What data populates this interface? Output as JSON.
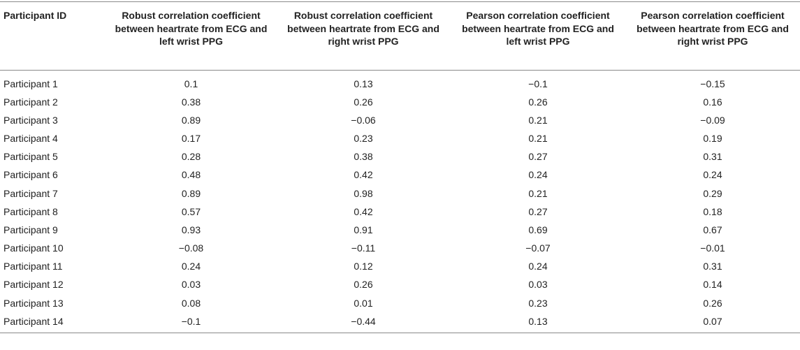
{
  "table": {
    "headers": [
      "Participant ID",
      "Robust correlation coefficient between heartrate from ECG and left wrist PPG",
      "Robust correlation coefficient between heartrate from ECG and right wrist PPG",
      "Pearson correlation coefficient between heartrate from ECG and left wrist PPG",
      "Pearson correlation coefficient between heartrate from ECG and right wrist PPG"
    ],
    "rows": [
      [
        "Participant 1",
        "0.1",
        "0.13",
        "−0.1",
        "−0.15"
      ],
      [
        "Participant 2",
        "0.38",
        "0.26",
        "0.26",
        "0.16"
      ],
      [
        "Participant 3",
        "0.89",
        "−0.06",
        "0.21",
        "−0.09"
      ],
      [
        "Participant 4",
        "0.17",
        "0.23",
        "0.21",
        "0.19"
      ],
      [
        "Participant 5",
        "0.28",
        "0.38",
        "0.27",
        "0.31"
      ],
      [
        "Participant 6",
        "0.48",
        "0.42",
        "0.24",
        "0.24"
      ],
      [
        "Participant 7",
        "0.89",
        "0.98",
        "0.21",
        "0.29"
      ],
      [
        "Participant 8",
        "0.57",
        "0.42",
        "0.27",
        "0.18"
      ],
      [
        "Participant 9",
        "0.93",
        "0.91",
        "0.69",
        "0.67"
      ],
      [
        "Participant 10",
        "−0.08",
        "−0.11",
        "−0.07",
        "−0.01"
      ],
      [
        "Participant 11",
        "0.24",
        "0.12",
        "0.24",
        "0.31"
      ],
      [
        "Participant 12",
        "0.03",
        "0.26",
        "0.03",
        "0.14"
      ],
      [
        "Participant 13",
        "0.08",
        "0.01",
        "0.23",
        "0.26"
      ],
      [
        "Participant 14",
        "−0.1",
        "−0.44",
        "0.13",
        "0.07"
      ]
    ]
  }
}
